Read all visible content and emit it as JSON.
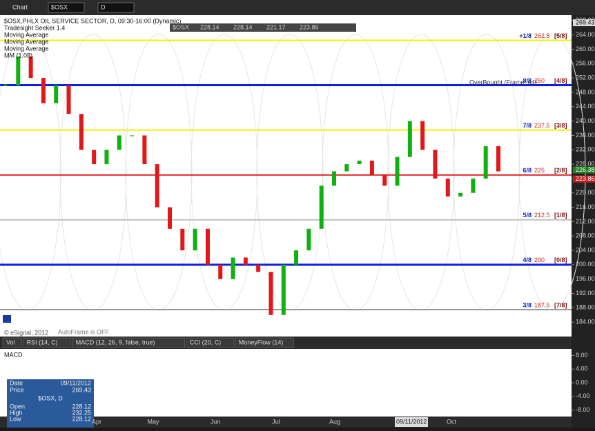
{
  "toolbar": {
    "title": "Chart",
    "symbol": "$OSX",
    "interval": "D"
  },
  "legend": {
    "lines": [
      "$OSX,PHLX OIL SERVICE SECTOR, D, 09:30-16:00 (Dynamic)",
      "Tradesight Seeker 1.4",
      "Moving Average",
      "Moving Average",
      "Moving Average",
      "MM (1.08)"
    ]
  },
  "quote": {
    "symbol": "$OSX",
    "values": [
      "228.14",
      "228.14",
      "221.17",
      "223.86"
    ]
  },
  "chart_data": {
    "type": "candlestick",
    "values": [
      250,
      258,
      252,
      245,
      250,
      242,
      232,
      228,
      232,
      236,
      236,
      228,
      216,
      210,
      204,
      210,
      200,
      196,
      202,
      200,
      198,
      186,
      200,
      204,
      210,
      222,
      226,
      228,
      229,
      225,
      222,
      230,
      240,
      232,
      224,
      219,
      220,
      224,
      233,
      226
    ],
    "colors": {
      "up": "#10b010",
      "down": "#e01818"
    },
    "ylim": [
      180,
      269.5
    ],
    "yticks": [
      {
        "value": 184,
        "label": "184.00"
      },
      {
        "value": 188,
        "label": "188.00"
      },
      {
        "value": 192,
        "label": "192.00"
      },
      {
        "value": 196,
        "label": "196.00"
      },
      {
        "value": 200,
        "label": "200.00"
      },
      {
        "value": 204,
        "label": "204.00"
      },
      {
        "value": 208,
        "label": "208.00"
      },
      {
        "value": 212,
        "label": "212.00"
      },
      {
        "value": 216,
        "label": "216.00"
      },
      {
        "value": 220,
        "label": "220.00"
      },
      {
        "value": 224,
        "label": "224.00"
      },
      {
        "value": 228,
        "label": "228.00"
      },
      {
        "value": 232,
        "label": "232.00"
      },
      {
        "value": 236,
        "label": "236.00"
      },
      {
        "value": 240,
        "label": "240.00"
      },
      {
        "value": 244,
        "label": "244.00"
      },
      {
        "value": 248,
        "label": "248.00"
      },
      {
        "value": 252,
        "label": "252.00"
      },
      {
        "value": 256,
        "label": "256.00"
      },
      {
        "value": 260,
        "label": "260.00"
      },
      {
        "value": 264,
        "label": "264.00"
      },
      {
        "value": 268,
        "label": "268.00"
      }
    ],
    "levels": [
      {
        "name": "+1/8",
        "value": 262.5,
        "fraction": "[5/8]",
        "color": "#f0f000"
      },
      {
        "name": "8/8",
        "value": 250,
        "fraction": "[4/8]",
        "color": "#1020e0"
      },
      {
        "name": "7/8",
        "value": 237.5,
        "fraction": "[3/8]",
        "color": "#f0f000"
      },
      {
        "name": "6/8",
        "value": 225,
        "fraction": "[2/8]",
        "color": "#e02020"
      },
      {
        "name": "5/8",
        "value": 212.5,
        "fraction": "[1/8]",
        "color": "#c0c0c0"
      },
      {
        "name": "4/8",
        "value": 200,
        "fraction": "[0/8]",
        "color": "#1020e0"
      },
      {
        "name": "3/8",
        "value": 187.5,
        "fraction": "[7/8]",
        "color": "#9a9a9a"
      }
    ],
    "price_markers": [
      226.38,
      223.86
    ],
    "months": [
      "Apr",
      "May",
      "Jun",
      "Jul",
      "Aug",
      "Oct"
    ],
    "annotations": [
      "OverBought (Frame: 64)",
      "AutoFrame is OFF",
      "© eSignal, 2012"
    ]
  },
  "tabs": [
    "Vol",
    "RSI (14, C)",
    "MACD (12, 26, 9, false, true)",
    "CCI (20, C)",
    "MoneyFlow (14)"
  ],
  "macd": {
    "title": "MACD",
    "ylim": [
      -9.5,
      9.5
    ],
    "yticks": [
      {
        "value": 8,
        "label": "8.00"
      },
      {
        "value": 4,
        "label": "4.00"
      },
      {
        "value": 0,
        "label": "0.00"
      },
      {
        "value": -4,
        "label": "-4.00"
      },
      {
        "value": -8,
        "label": "-8.00"
      }
    ]
  },
  "cursor_info": {
    "date_label": "Date",
    "date": "09/11/2012",
    "price_label": "Price",
    "price": "269.43",
    "symbol": "$OSX, D",
    "rows": [
      [
        "Open",
        "228.12"
      ],
      [
        "High",
        "232.25"
      ],
      [
        "Low",
        "228.12"
      ]
    ]
  }
}
